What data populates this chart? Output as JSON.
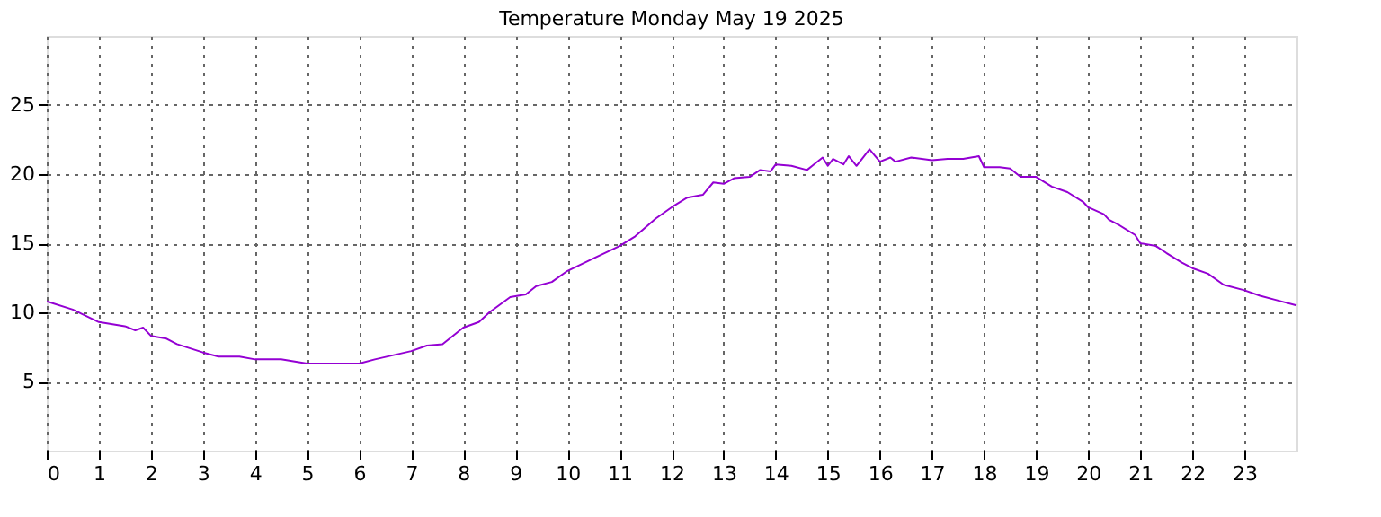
{
  "chart_data": {
    "type": "line",
    "title": "Temperature Monday May 19 2025",
    "x": [
      0,
      0.5,
      1,
      1.5,
      1.7,
      1.85,
      2,
      2.3,
      2.5,
      3,
      3.3,
      3.7,
      4,
      4.5,
      5,
      5.5,
      6,
      6.3,
      7,
      7.3,
      7.6,
      8,
      8.3,
      8.5,
      8.9,
      9.2,
      9.4,
      9.7,
      10,
      10.5,
      11,
      11.3,
      11.7,
      12,
      12.3,
      12.6,
      12.8,
      13,
      13.2,
      13.5,
      13.7,
      13.9,
      14,
      14.3,
      14.6,
      14.7,
      14.9,
      15,
      15.1,
      15.3,
      15.4,
      15.55,
      15.8,
      16,
      16.2,
      16.3,
      16.6,
      17,
      17.3,
      17.6,
      17.9,
      18,
      18.3,
      18.5,
      18.7,
      19,
      19.3,
      19.6,
      19.9,
      20,
      20.3,
      20.4,
      20.6,
      20.9,
      21,
      21.3,
      21.5,
      21.8,
      22,
      22.3,
      22.6,
      23,
      23.3,
      23.6,
      24
    ],
    "series": [
      {
        "color": "#9400d3",
        "values": [
          10.8,
          10.2,
          9.3,
          9.0,
          8.7,
          8.9,
          8.3,
          8.1,
          7.7,
          7.1,
          6.8,
          6.8,
          6.6,
          6.6,
          6.3,
          6.3,
          6.3,
          6.6,
          7.2,
          7.6,
          7.7,
          8.9,
          9.3,
          10.0,
          11.1,
          11.3,
          11.9,
          12.2,
          13.0,
          13.9,
          14.8,
          15.5,
          16.8,
          17.6,
          18.3,
          18.5,
          19.4,
          19.3,
          19.7,
          19.8,
          20.3,
          20.2,
          20.7,
          20.6,
          20.3,
          20.6,
          21.2,
          20.6,
          21.1,
          20.7,
          21.3,
          20.6,
          21.8,
          20.9,
          21.2,
          20.9,
          21.2,
          21.0,
          21.1,
          21.1,
          21.3,
          20.5,
          20.5,
          20.4,
          19.8,
          19.8,
          19.1,
          18.7,
          18.0,
          17.6,
          17.1,
          16.7,
          16.3,
          15.6,
          15.0,
          14.8,
          14.3,
          13.6,
          13.2,
          12.8,
          12.0,
          11.6,
          11.2,
          10.9,
          10.5
        ]
      }
    ],
    "xlim": [
      0,
      24
    ],
    "xticks": [
      0,
      1,
      2,
      3,
      4,
      5,
      6,
      7,
      8,
      9,
      10,
      11,
      12,
      13,
      14,
      15,
      16,
      17,
      18,
      19,
      20,
      21,
      22,
      23
    ],
    "ylim": [
      0,
      30
    ],
    "yticks": [
      5,
      10,
      15,
      20,
      25
    ],
    "grid": true,
    "line_style": "solid",
    "marker": "none",
    "legend": false
  }
}
